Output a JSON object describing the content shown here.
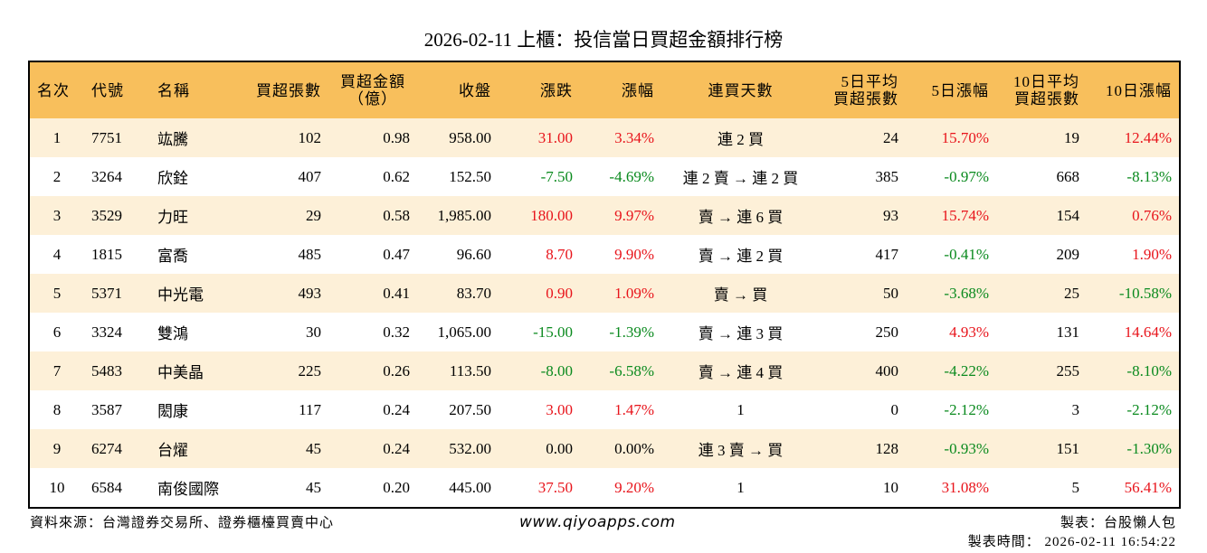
{
  "title": "2026-02-11 上櫃：投信當日買超金額排行榜",
  "table": {
    "headers": [
      "名次",
      "代號",
      "名稱",
      "買超張數",
      "買超金額\n（億）",
      "收盤",
      "漲跌",
      "漲幅",
      "連買天數",
      "5日平均\n買超張數",
      "5日漲幅",
      "10日平均\n買超張數",
      "10日漲幅"
    ],
    "rows": [
      [
        "1",
        "7751",
        "竑騰",
        "102",
        "0.98",
        "958.00",
        "31.00",
        "3.34%",
        "連 2 買",
        "24",
        "15.70%",
        "19",
        "12.44%"
      ],
      [
        "2",
        "3264",
        "欣銓",
        "407",
        "0.62",
        "152.50",
        "-7.50",
        "-4.69%",
        "連 2 賣 → 連 2 買",
        "385",
        "-0.97%",
        "668",
        "-8.13%"
      ],
      [
        "3",
        "3529",
        "力旺",
        "29",
        "0.58",
        "1,985.00",
        "180.00",
        "9.97%",
        "賣 → 連 6 買",
        "93",
        "15.74%",
        "154",
        "0.76%"
      ],
      [
        "4",
        "1815",
        "富喬",
        "485",
        "0.47",
        "96.60",
        "8.70",
        "9.90%",
        "賣 → 連 2 買",
        "417",
        "-0.41%",
        "209",
        "1.90%"
      ],
      [
        "5",
        "5371",
        "中光電",
        "493",
        "0.41",
        "83.70",
        "0.90",
        "1.09%",
        "賣 → 買",
        "50",
        "-3.68%",
        "25",
        "-10.58%"
      ],
      [
        "6",
        "3324",
        "雙鴻",
        "30",
        "0.32",
        "1,065.00",
        "-15.00",
        "-1.39%",
        "賣 → 連 3 買",
        "250",
        "4.93%",
        "131",
        "14.64%"
      ],
      [
        "7",
        "5483",
        "中美晶",
        "225",
        "0.26",
        "113.50",
        "-8.00",
        "-6.58%",
        "賣 → 連 4 買",
        "400",
        "-4.22%",
        "255",
        "-8.10%"
      ],
      [
        "8",
        "3587",
        "閎康",
        "117",
        "0.24",
        "207.50",
        "3.00",
        "1.47%",
        "1",
        "0",
        "-2.12%",
        "3",
        "-2.12%"
      ],
      [
        "9",
        "6274",
        "台燿",
        "45",
        "0.24",
        "532.00",
        "0.00",
        "0.00%",
        "連 3 賣 → 買",
        "128",
        "-0.93%",
        "151",
        "-1.30%"
      ],
      [
        "10",
        "6584",
        "南俊國際",
        "45",
        "0.20",
        "445.00",
        "37.50",
        "9.20%",
        "1",
        "10",
        "31.08%",
        "5",
        "56.41%"
      ]
    ]
  },
  "footer": {
    "source": "資料來源：台灣證券交易所、證券櫃檯買賣中心",
    "website": "www.qiyoapps.com",
    "author": "製表：台股懶人包",
    "time": "製表時間： 2026-02-11 16:54:22"
  }
}
